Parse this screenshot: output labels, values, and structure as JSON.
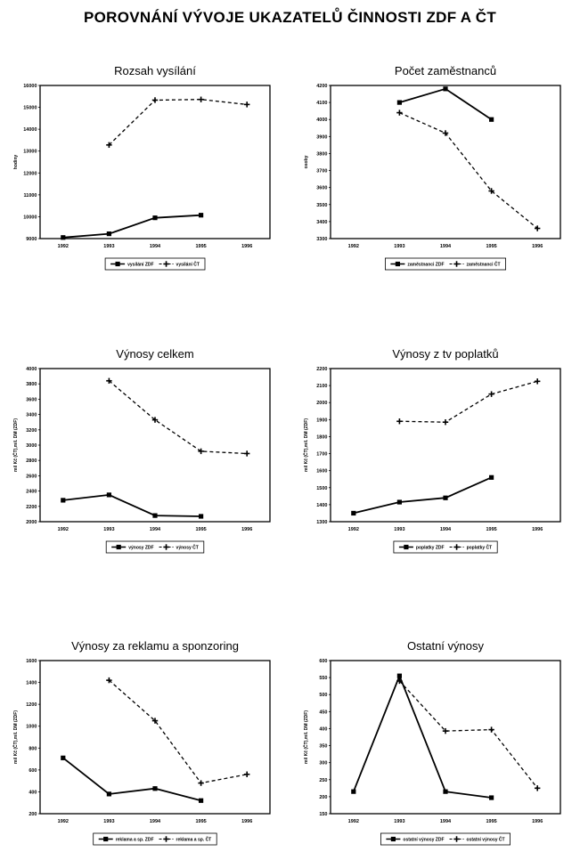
{
  "page": {
    "title": "POROVNÁNÍ VÝVOJE UKAZATELŮ ČINNOSTI ZDF A ČT"
  },
  "chart_data": [
    {
      "type": "line",
      "title": "Rozsah vysílání",
      "ylabel": "hodiny",
      "xlabel": "",
      "categories": [
        "1992",
        "1993",
        "1994",
        "1995",
        "1996"
      ],
      "ylim": [
        9000,
        16000
      ],
      "yticks": [
        9000,
        10000,
        11000,
        12000,
        13000,
        14000,
        15000,
        16000
      ],
      "series": [
        {
          "name": "vysílání ZDF",
          "style": "solid",
          "marker": "square",
          "values": [
            9050,
            9220,
            9950,
            10070,
            null
          ]
        },
        {
          "name": "vysílání ČT",
          "style": "dashed",
          "marker": "plus",
          "values": [
            null,
            13280,
            15330,
            15360,
            15130
          ]
        }
      ],
      "legend": "bottom",
      "grid": false
    },
    {
      "type": "line",
      "title": "Počet zaměstnanců",
      "ylabel": "osoby",
      "xlabel": "",
      "categories": [
        "1992",
        "1993",
        "1994",
        "1995",
        "1996"
      ],
      "ylim": [
        3300,
        4200
      ],
      "yticks": [
        3300,
        3400,
        3500,
        3600,
        3700,
        3800,
        3900,
        4000,
        4100,
        4200
      ],
      "series": [
        {
          "name": "zaměstnanci ZDF",
          "style": "solid",
          "marker": "square",
          "values": [
            null,
            4100,
            4180,
            4000,
            null
          ]
        },
        {
          "name": "zaměstnanci ČT",
          "style": "dashed",
          "marker": "plus",
          "values": [
            null,
            4040,
            3920,
            3580,
            3360
          ]
        }
      ],
      "legend": "bottom",
      "grid": false
    },
    {
      "type": "line",
      "title": "Výnosy celkem",
      "ylabel": "mil Kč (ČT),mil. DM (ZDF)",
      "xlabel": "",
      "categories": [
        "1992",
        "1993",
        "1994",
        "1995",
        "1996"
      ],
      "ylim": [
        2000,
        4000
      ],
      "yticks": [
        2000,
        2200,
        2400,
        2600,
        2800,
        3000,
        3200,
        3400,
        3600,
        3800,
        4000
      ],
      "series": [
        {
          "name": "výnosy  ZDF",
          "style": "solid",
          "marker": "square",
          "values": [
            2280,
            2350,
            2080,
            2070,
            null
          ]
        },
        {
          "name": "výnosy  ČT",
          "style": "dashed",
          "marker": "plus",
          "values": [
            null,
            3840,
            3330,
            2920,
            2890
          ]
        }
      ],
      "legend": "bottom",
      "grid": false
    },
    {
      "type": "line",
      "title": "Výnosy z tv poplatků",
      "ylabel": "mil Kč (ČT),mil. DM (ZDF)",
      "xlabel": "",
      "categories": [
        "1992",
        "1993",
        "1994",
        "1995",
        "1996"
      ],
      "ylim": [
        1300,
        2200
      ],
      "yticks": [
        1300,
        1400,
        1500,
        1600,
        1700,
        1800,
        1900,
        2000,
        2100,
        2200
      ],
      "series": [
        {
          "name": "poplatky  ZDF",
          "style": "solid",
          "marker": "square",
          "values": [
            1350,
            1415,
            1440,
            1560,
            null
          ]
        },
        {
          "name": "poplatky  ČT",
          "style": "dashed",
          "marker": "plus",
          "values": [
            null,
            1890,
            1885,
            2050,
            2125
          ]
        }
      ],
      "legend": "bottom",
      "grid": false
    },
    {
      "type": "line",
      "title": "Výnosy za reklamu a sponzoring",
      "ylabel": "mil Kč (ČT),mil. DM (ZDF)",
      "xlabel": "",
      "categories": [
        "1992",
        "1993",
        "1994",
        "1995",
        "1996"
      ],
      "ylim": [
        200,
        1600
      ],
      "yticks": [
        200,
        400,
        600,
        800,
        1000,
        1200,
        1400,
        1600
      ],
      "series": [
        {
          "name": "reklama a sp.  ZDF",
          "style": "solid",
          "marker": "square",
          "values": [
            710,
            380,
            430,
            320,
            null
          ]
        },
        {
          "name": "reklama a sp.  ČT",
          "style": "dashed",
          "marker": "plus",
          "values": [
            null,
            1420,
            1050,
            480,
            560
          ]
        }
      ],
      "legend": "bottom",
      "grid": false
    },
    {
      "type": "line",
      "title": "Ostatní výnosy",
      "ylabel": "mil Kč (ČT),mil. DM (ZDF)",
      "xlabel": "",
      "categories": [
        "1992",
        "1993",
        "1994",
        "1995",
        "1996"
      ],
      "ylim": [
        150,
        600
      ],
      "yticks": [
        150,
        200,
        250,
        300,
        350,
        400,
        450,
        500,
        550,
        600
      ],
      "series": [
        {
          "name": "ostatní výnosy  ZDF",
          "style": "solid",
          "marker": "square",
          "values": [
            215,
            555,
            215,
            197,
            null
          ]
        },
        {
          "name": "ostatní výnosy  ČT",
          "style": "dashed",
          "marker": "plus",
          "values": [
            null,
            540,
            393,
            397,
            225
          ]
        }
      ],
      "legend": "bottom",
      "grid": false
    }
  ]
}
